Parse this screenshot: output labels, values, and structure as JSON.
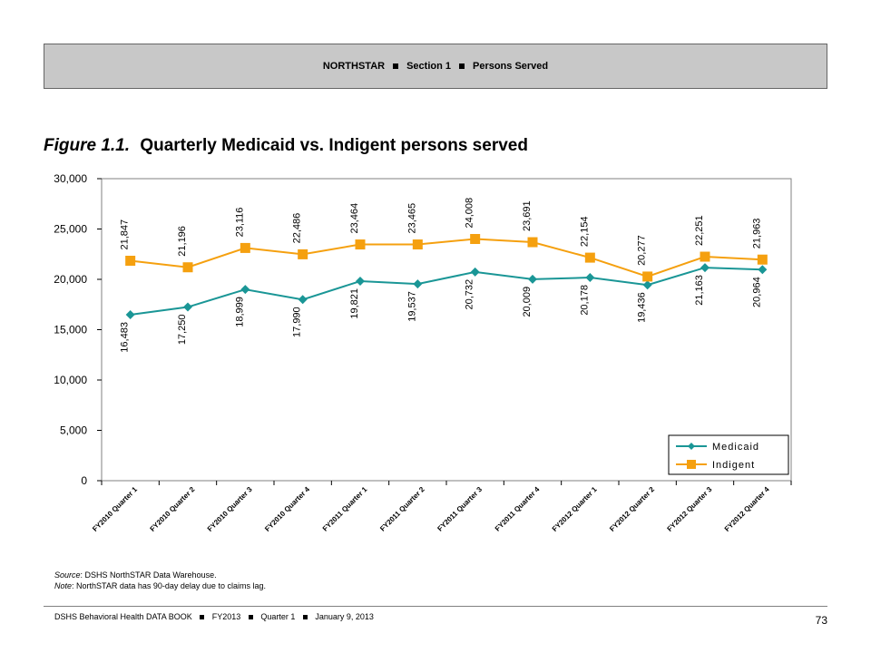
{
  "header": {
    "part1": "NORTHSTAR",
    "part2": "Section 1",
    "part3": "Persons Served"
  },
  "figure": {
    "number": "Figure 1.1.",
    "title": "Quarterly Medicaid vs. Indigent persons served"
  },
  "chart_data": {
    "type": "line",
    "categories": [
      "FY2010 Quarter 1",
      "FY2010 Quarter 2",
      "FY2010 Quarter 3",
      "FY2010 Quarter 4",
      "FY2011 Quarter 1",
      "FY2011 Quarter 2",
      "FY2011 Quarter 3",
      "FY2011 Quarter 4",
      "FY2012 Quarter 1",
      "FY2012 Quarter 2",
      "FY2012 Quarter 3",
      "FY2012 Quarter 4"
    ],
    "series": [
      {
        "name": "Medicaid",
        "color": "#1a9696",
        "marker": "diamond",
        "values": [
          16483,
          17250,
          18999,
          17990,
          19821,
          19537,
          20732,
          20009,
          20178,
          19436,
          21163,
          20964
        ],
        "labels": [
          "16,483",
          "17,250",
          "18,999",
          "17,990",
          "19,821",
          "19,537",
          "20,732",
          "20,009",
          "20,178",
          "19,436",
          "21,163",
          "20,964"
        ]
      },
      {
        "name": "Indigent",
        "color": "#f5a00f",
        "marker": "square",
        "values": [
          21847,
          21196,
          23116,
          22486,
          23464,
          23465,
          24008,
          23691,
          22154,
          20277,
          22251,
          21963
        ],
        "labels": [
          "21,847",
          "21,196",
          "23,116",
          "22,486",
          "23,464",
          "23,465",
          "24,008",
          "23,691",
          "22,154",
          "20,277",
          "22,251",
          "21,963"
        ]
      }
    ],
    "ylim": [
      0,
      30000
    ],
    "yticks": [
      0,
      5000,
      10000,
      15000,
      20000,
      25000,
      30000
    ],
    "ytick_labels": [
      "0",
      "5,000",
      "10,000",
      "15,000",
      "20,000",
      "25,000",
      "30,000"
    ],
    "grid": false,
    "legend_position": "bottom-right"
  },
  "source": {
    "label": "Source",
    "text": ": DSHS NorthSTAR Data Warehouse."
  },
  "note": {
    "label": "Note",
    "text": ": NorthSTAR data has 90-day delay due to claims lag."
  },
  "footer": {
    "part1": "DSHS Behavioral Health DATA BOOK",
    "part2": "FY2013",
    "part3": "Quarter 1",
    "part4": "January  9, 2013",
    "page": "73"
  }
}
